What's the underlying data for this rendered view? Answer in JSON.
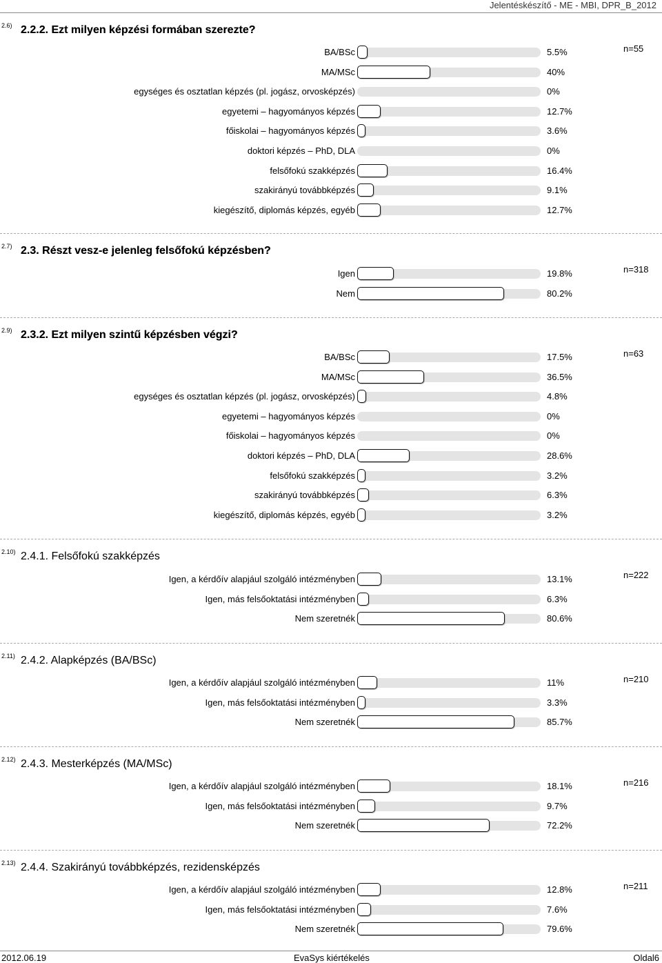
{
  "header": {
    "title": "Jelentéskészítő - ME - MBI, DPR_B_2012"
  },
  "footer": {
    "date": "2012.06.19",
    "center": "EvaSys kiértékelés",
    "page": "Oldal6"
  },
  "colors": {
    "bar_fill": "#ffffff",
    "bar_border": "#111111",
    "track": "#e4e4e4"
  },
  "chart_data": [
    {
      "type": "bar",
      "num": "2.6)",
      "title": "2.2.2. Ezt milyen képzési formában szerezte?",
      "n": "n=55",
      "categories": [
        "BA/BSc",
        "MA/MSc",
        "egységes és osztatlan képzés (pl. jogász, orvosképzés)",
        "egyetemi – hagyományos képzés",
        "főiskolai – hagyományos képzés",
        "doktori képzés – PhD, DLA",
        "felsőfokú szakképzés",
        "szakirányú továbbképzés",
        "kiegészítő, diplomás képzés, egyéb"
      ],
      "values": [
        5.5,
        40,
        0,
        12.7,
        3.6,
        0,
        16.4,
        9.1,
        12.7
      ],
      "labels": [
        "5.5%",
        "40%",
        "0%",
        "12.7%",
        "3.6%",
        "0%",
        "16.4%",
        "9.1%",
        "12.7%"
      ]
    },
    {
      "type": "bar",
      "num": "2.7)",
      "title": "2.3. Részt vesz-e jelenleg felsőfokú képzésben?",
      "n": "n=318",
      "categories": [
        "Igen",
        "Nem"
      ],
      "values": [
        19.8,
        80.2
      ],
      "labels": [
        "19.8%",
        "80.2%"
      ]
    },
    {
      "type": "bar",
      "num": "2.9)",
      "title": "2.3.2. Ezt milyen szintű képzésben végzi?",
      "n": "n=63",
      "categories": [
        "BA/BSc",
        "MA/MSc",
        "egységes és osztatlan képzés (pl. jogász, orvosképzés)",
        "egyetemi – hagyományos képzés",
        "főiskolai – hagyományos képzés",
        "doktori képzés – PhD, DLA",
        "felsőfokú szakképzés",
        "szakirányú továbbképzés",
        "kiegészítő, diplomás képzés, egyéb"
      ],
      "values": [
        17.5,
        36.5,
        4.8,
        0,
        0,
        28.6,
        3.2,
        6.3,
        3.2
      ],
      "labels": [
        "17.5%",
        "36.5%",
        "4.8%",
        "0%",
        "0%",
        "28.6%",
        "3.2%",
        "6.3%",
        "3.2%"
      ]
    },
    {
      "type": "bar",
      "num": "2.10)",
      "title": "2.4.1. Felsőfokú szakképzés",
      "n": "n=222",
      "categories": [
        "Igen, a kérdőív alapjául szolgáló intézményben",
        "Igen, más felsőoktatási intézményben",
        "Nem szeretnék"
      ],
      "values": [
        13.1,
        6.3,
        80.6
      ],
      "labels": [
        "13.1%",
        "6.3%",
        "80.6%"
      ]
    },
    {
      "type": "bar",
      "num": "2.11)",
      "title": "2.4.2. Alapképzés (BA/BSc)",
      "n": "n=210",
      "categories": [
        "Igen, a kérdőív alapjául szolgáló intézményben",
        "Igen, más felsőoktatási intézményben",
        "Nem szeretnék"
      ],
      "values": [
        11,
        3.3,
        85.7
      ],
      "labels": [
        "11%",
        "3.3%",
        "85.7%"
      ]
    },
    {
      "type": "bar",
      "num": "2.12)",
      "title": "2.4.3. Mesterképzés (MA/MSc)",
      "n": "n=216",
      "categories": [
        "Igen, a kérdőív alapjául szolgáló intézményben",
        "Igen, más felsőoktatási intézményben",
        "Nem szeretnék"
      ],
      "values": [
        18.1,
        9.7,
        72.2
      ],
      "labels": [
        "18.1%",
        "9.7%",
        "72.2%"
      ]
    },
    {
      "type": "bar",
      "num": "2.13)",
      "title": "2.4.4. Szakirányú továbbképzés, rezidensképzés",
      "n": "n=211",
      "categories": [
        "Igen, a kérdőív alapjául szolgáló intézményben",
        "Igen, más felsőoktatási intézményben",
        "Nem szeretnék"
      ],
      "values": [
        12.8,
        7.6,
        79.6
      ],
      "labels": [
        "12.8%",
        "7.6%",
        "79.6%"
      ]
    }
  ]
}
